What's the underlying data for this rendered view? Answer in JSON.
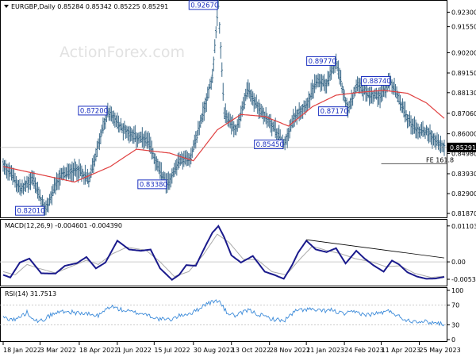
{
  "watermark": "ActionForex.com",
  "chart_data": [
    {
      "type": "line",
      "title": "EURGBP,Daily  0.85284 0.85342 0.85225 0.85291",
      "symbol": "EURGBP",
      "timeframe": "Daily",
      "ohlc": {
        "open": 0.85284,
        "high": 0.85342,
        "low": 0.85225,
        "close": 0.85291
      },
      "last_price_label": "0.85291",
      "ylim": [
        0.8175,
        0.9285
      ],
      "y_ticks": [
        0.923,
        0.9155,
        0.902,
        0.8915,
        0.8813,
        0.8706,
        0.86,
        0.8498,
        0.8393,
        0.829,
        0.8187
      ],
      "y_tick_labels": [
        "0.92300",
        "0.91550",
        "0.90200",
        "0.89150",
        "0.88130",
        "0.87060",
        "0.86000",
        "0.84980",
        "0.83930",
        "0.82900",
        "0.81870"
      ],
      "x_labels": [
        "18 Jan 2022",
        "3 Mar 2022",
        "18 Apr 2022",
        "1 Jun 2022",
        "15 Jul 2022",
        "30 Aug 2022",
        "13 Oct 2022",
        "28 Nov 2022",
        "11 Jan 2023",
        "24 Feb 2023",
        "11 Apr 2023",
        "25 May 2023"
      ],
      "x_label_idx": [
        0,
        31,
        64,
        96,
        127,
        160,
        192,
        224,
        255,
        287,
        318,
        350
      ],
      "n_bars": 372,
      "price_anchors": [
        [
          0,
          0.844
        ],
        [
          6,
          0.84
        ],
        [
          15,
          0.831
        ],
        [
          25,
          0.837
        ],
        [
          35,
          0.8201
        ],
        [
          48,
          0.838
        ],
        [
          62,
          0.842
        ],
        [
          72,
          0.836
        ],
        [
          88,
          0.872
        ],
        [
          98,
          0.864
        ],
        [
          112,
          0.858
        ],
        [
          122,
          0.856
        ],
        [
          132,
          0.84
        ],
        [
          138,
          0.8338
        ],
        [
          148,
          0.846
        ],
        [
          158,
          0.848
        ],
        [
          170,
          0.875
        ],
        [
          176,
          0.89
        ],
        [
          181,
          0.9267
        ],
        [
          186,
          0.87
        ],
        [
          196,
          0.862
        ],
        [
          206,
          0.883
        ],
        [
          216,
          0.872
        ],
        [
          226,
          0.865
        ],
        [
          236,
          0.8545
        ],
        [
          246,
          0.87
        ],
        [
          256,
          0.876
        ],
        [
          264,
          0.888
        ],
        [
          272,
          0.886
        ],
        [
          280,
          0.8977
        ],
        [
          290,
          0.8717
        ],
        [
          298,
          0.886
        ],
        [
          308,
          0.88
        ],
        [
          318,
          0.88
        ],
        [
          326,
          0.8874
        ],
        [
          333,
          0.877
        ],
        [
          340,
          0.868
        ],
        [
          348,
          0.862
        ],
        [
          357,
          0.861
        ],
        [
          364,
          0.856
        ],
        [
          371,
          0.8529
        ]
      ],
      "ma_anchors": [
        [
          0,
          0.843
        ],
        [
          30,
          0.839
        ],
        [
          60,
          0.835
        ],
        [
          90,
          0.843
        ],
        [
          112,
          0.852
        ],
        [
          140,
          0.85
        ],
        [
          160,
          0.846
        ],
        [
          180,
          0.862
        ],
        [
          200,
          0.87
        ],
        [
          220,
          0.869
        ],
        [
          240,
          0.864
        ],
        [
          260,
          0.874
        ],
        [
          280,
          0.88
        ],
        [
          300,
          0.8815
        ],
        [
          320,
          0.8825
        ],
        [
          340,
          0.881
        ],
        [
          356,
          0.876
        ],
        [
          371,
          0.868
        ]
      ],
      "annotations": [
        {
          "label": "0.92670",
          "idx": 181,
          "price": 0.9267,
          "box_dx": -40,
          "box_dy": 0
        },
        {
          "label": "0.89770",
          "idx": 280,
          "price": 0.8977,
          "box_dx": -40,
          "box_dy": 0
        },
        {
          "label": "0.88740",
          "idx": 326,
          "price": 0.8874,
          "box_dx": -40,
          "box_dy": 0
        },
        {
          "label": "0.87200",
          "idx": 88,
          "price": 0.872,
          "box_dx": -40,
          "box_dy": 0
        },
        {
          "label": "0.87170",
          "idx": 290,
          "price": 0.8717,
          "box_dx": -40,
          "box_dy": 0
        },
        {
          "label": "0.85450",
          "idx": 236,
          "price": 0.8545,
          "box_dx": -40,
          "box_dy": 0
        },
        {
          "label": "0.83380",
          "idx": 138,
          "price": 0.8338,
          "box_dx": -40,
          "box_dy": 0
        },
        {
          "label": "0.82010",
          "idx": 35,
          "price": 0.8201,
          "box_dx": -40,
          "box_dy": 0
        }
      ],
      "fibo": {
        "label": "FE 161.8",
        "price": 0.8445,
        "from_idx": 318,
        "to_idx": 372
      },
      "colors": {
        "price": "#3d6b8a",
        "ma": "#e04040",
        "label": "#1a2fbf",
        "fibo": "#555555"
      }
    },
    {
      "type": "line",
      "title": "MACD(12,26,9) -0.004601 -0.004390",
      "ylim": [
        -0.0068,
        0.0122
      ],
      "y_tick_labels": [
        "0.011031",
        "0.00",
        "-0.005345"
      ],
      "y_tick_values": [
        0.011031,
        0.0,
        -0.005345
      ],
      "macd_anchors": [
        [
          0,
          -0.004
        ],
        [
          6,
          -0.0048
        ],
        [
          14,
          -0.0002
        ],
        [
          22,
          0.001
        ],
        [
          32,
          -0.0035
        ],
        [
          44,
          -0.0036
        ],
        [
          52,
          -0.0012
        ],
        [
          62,
          -0.0004
        ],
        [
          70,
          0.0015
        ],
        [
          78,
          -0.002
        ],
        [
          86,
          -0.0002
        ],
        [
          96,
          0.0065
        ],
        [
          106,
          0.0038
        ],
        [
          116,
          0.0034
        ],
        [
          124,
          0.0038
        ],
        [
          132,
          -0.002
        ],
        [
          142,
          -0.0055
        ],
        [
          148,
          -0.004
        ],
        [
          154,
          -0.001
        ],
        [
          162,
          -0.0012
        ],
        [
          170,
          0.0048
        ],
        [
          176,
          0.009
        ],
        [
          181,
          0.011
        ],
        [
          186,
          0.0075
        ],
        [
          192,
          0.002
        ],
        [
          200,
          -0.0002
        ],
        [
          210,
          0.0018
        ],
        [
          220,
          -0.003
        ],
        [
          228,
          -0.004
        ],
        [
          236,
          -0.0052
        ],
        [
          243,
          -0.001
        ],
        [
          248,
          0.0028
        ],
        [
          255,
          0.0065
        ],
        [
          263,
          0.0038
        ],
        [
          272,
          0.003
        ],
        [
          280,
          0.0042
        ],
        [
          288,
          -0.0005
        ],
        [
          297,
          0.0034
        ],
        [
          304,
          0.001
        ],
        [
          312,
          -0.0012
        ],
        [
          320,
          -0.003
        ],
        [
          327,
          0.0004
        ],
        [
          333,
          -0.0008
        ],
        [
          340,
          -0.0032
        ],
        [
          348,
          -0.0045
        ],
        [
          356,
          -0.0052
        ],
        [
          364,
          -0.0051
        ],
        [
          371,
          -0.0046
        ]
      ],
      "signal_anchors": [
        [
          0,
          -0.003
        ],
        [
          10,
          -0.004
        ],
        [
          20,
          -0.0008
        ],
        [
          30,
          -0.002
        ],
        [
          44,
          -0.0034
        ],
        [
          56,
          -0.0016
        ],
        [
          70,
          0.0005
        ],
        [
          80,
          -0.0008
        ],
        [
          92,
          0.0025
        ],
        [
          104,
          0.0045
        ],
        [
          120,
          0.0036
        ],
        [
          132,
          0.0
        ],
        [
          144,
          -0.0045
        ],
        [
          156,
          -0.003
        ],
        [
          168,
          0.002
        ],
        [
          180,
          0.0085
        ],
        [
          190,
          0.006
        ],
        [
          202,
          0.0008
        ],
        [
          214,
          0.0006
        ],
        [
          226,
          -0.003
        ],
        [
          238,
          -0.004
        ],
        [
          250,
          0.001
        ],
        [
          260,
          0.0048
        ],
        [
          272,
          0.0035
        ],
        [
          284,
          0.0025
        ],
        [
          296,
          0.001
        ],
        [
          310,
          0.0
        ],
        [
          322,
          -0.0015
        ],
        [
          334,
          -0.0012
        ],
        [
          346,
          -0.0035
        ],
        [
          360,
          -0.0048
        ],
        [
          371,
          -0.0044
        ]
      ],
      "trendline": {
        "from": [
          255,
          0.0068
        ],
        "to": [
          371,
          0.0012
        ]
      },
      "colors": {
        "macd": "#1a1a8c",
        "signal": "#aaaaaa",
        "zero": "#cccccc",
        "trend": "#000000"
      }
    },
    {
      "type": "line",
      "title": "RSI(14) 31.7513",
      "ylim": [
        0,
        100
      ],
      "y_tick_labels": [
        "100",
        "70",
        "30",
        "0"
      ],
      "y_tick_values": [
        100,
        70,
        30,
        0
      ],
      "rsi_anchors": [
        [
          0,
          45
        ],
        [
          10,
          40
        ],
        [
          20,
          55
        ],
        [
          30,
          35
        ],
        [
          40,
          50
        ],
        [
          50,
          58
        ],
        [
          60,
          55
        ],
        [
          70,
          52
        ],
        [
          80,
          48
        ],
        [
          90,
          68
        ],
        [
          100,
          60
        ],
        [
          110,
          55
        ],
        [
          120,
          52
        ],
        [
          130,
          42
        ],
        [
          140,
          40
        ],
        [
          150,
          50
        ],
        [
          160,
          55
        ],
        [
          170,
          72
        ],
        [
          181,
          80
        ],
        [
          188,
          55
        ],
        [
          196,
          48
        ],
        [
          206,
          60
        ],
        [
          216,
          50
        ],
        [
          226,
          42
        ],
        [
          236,
          38
        ],
        [
          246,
          58
        ],
        [
          256,
          62
        ],
        [
          266,
          58
        ],
        [
          276,
          60
        ],
        [
          286,
          52
        ],
        [
          296,
          56
        ],
        [
          306,
          50
        ],
        [
          316,
          54
        ],
        [
          326,
          58
        ],
        [
          334,
          45
        ],
        [
          342,
          38
        ],
        [
          350,
          38
        ],
        [
          358,
          35
        ],
        [
          364,
          34
        ],
        [
          371,
          31.75
        ]
      ],
      "colors": {
        "rsi": "#3b8ad9"
      }
    }
  ]
}
